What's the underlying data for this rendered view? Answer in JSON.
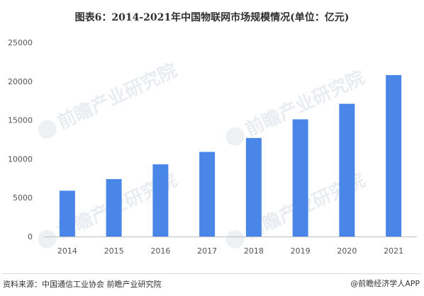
{
  "title": "图表6：2014-2021年中国物联网市场规模情况(单位：亿元)",
  "source": "资料来源：中国通信工业协会 前瞻产业研究院",
  "brand": "@前瞻经济学人APP",
  "watermark": {
    "logo_text": "前瞻产业研究院",
    "brand_icon": "qianzhan-logo-icon"
  },
  "colors": {
    "bar": "#4a86e8",
    "axis": "#bfbfbf",
    "text": "#555555",
    "title": "#2f2f2f"
  },
  "chart_data": {
    "type": "bar",
    "title": "图表6：2014-2021年中国物联网市场规模情况(单位：亿元)",
    "xlabel": "",
    "ylabel": "",
    "categories": [
      "2014",
      "2015",
      "2016",
      "2017",
      "2018",
      "2019",
      "2020",
      "2021"
    ],
    "series": [
      {
        "values": [
          5900,
          7400,
          9300,
          10900,
          12700,
          15100,
          17100,
          20800
        ]
      }
    ],
    "ylim": [
      0,
      25000
    ],
    "yticks": [
      0,
      5000,
      10000,
      15000,
      20000,
      25000
    ],
    "grid": false,
    "legend": "none"
  }
}
